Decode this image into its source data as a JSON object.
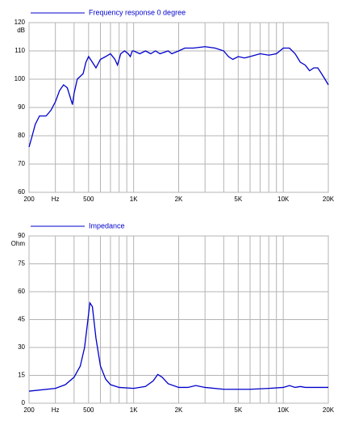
{
  "chart_data": [
    {
      "type": "line",
      "log_x": true,
      "grid": true,
      "x": [
        200,
        210,
        220,
        235,
        260,
        280,
        300,
        320,
        340,
        360,
        380,
        390,
        400,
        420,
        440,
        460,
        480,
        500,
        530,
        560,
        600,
        650,
        700,
        750,
        780,
        820,
        870,
        920,
        950,
        980,
        1000,
        1100,
        1200,
        1300,
        1400,
        1500,
        1700,
        1800,
        2000,
        2200,
        2500,
        3000,
        3500,
        4000,
        4300,
        4600,
        5000,
        5500,
        6000,
        7000,
        8000,
        9000,
        10000,
        11000,
        12000,
        13000,
        14000,
        15000,
        16000,
        17000,
        18000,
        19000,
        20000
      ],
      "series": [
        {
          "name": "Frequency response 0 degree",
          "color": "#0000cc",
          "values": [
            76,
            80,
            84,
            87,
            87,
            89,
            92,
            96,
            98,
            97,
            93,
            91,
            95,
            100,
            101,
            102,
            106,
            108,
            106,
            104,
            107,
            108,
            109,
            107,
            105,
            109,
            110,
            109,
            108,
            110,
            110,
            109,
            110,
            109,
            110,
            109,
            110,
            109,
            110,
            111,
            111,
            111.5,
            111,
            110,
            108,
            107,
            108,
            107.5,
            108,
            109,
            108.5,
            109,
            111,
            111,
            109,
            106,
            105,
            103,
            104,
            104,
            102,
            100,
            98
          ]
        }
      ],
      "xlim": [
        200,
        20000
      ],
      "xticks": [
        200,
        {
          "value": 300,
          "label": "Hz"
        },
        500,
        {
          "value": 1000,
          "label": "1K"
        },
        {
          "value": 2000,
          "label": "2K"
        },
        {
          "value": 5000,
          "label": "5K"
        },
        {
          "value": 10000,
          "label": "10K"
        },
        {
          "value": 20000,
          "label": "20K"
        }
      ],
      "xgrid": [
        400,
        600,
        700,
        800,
        900,
        3000,
        4000,
        6000,
        7000,
        8000,
        9000
      ],
      "ylim": [
        60,
        120
      ],
      "yticks": [
        60,
        70,
        80,
        90,
        100,
        110,
        120
      ],
      "y_unit": "dB"
    },
    {
      "type": "line",
      "log_x": true,
      "grid": true,
      "x": [
        200,
        300,
        350,
        400,
        440,
        470,
        490,
        510,
        530,
        560,
        600,
        650,
        700,
        800,
        1000,
        1200,
        1350,
        1450,
        1550,
        1700,
        2000,
        2300,
        2600,
        3000,
        4000,
        6000,
        8000,
        10000,
        11000,
        12000,
        13000,
        14000,
        16000,
        20000
      ],
      "series": [
        {
          "name": "Impedance",
          "color": "#0000cc",
          "values": [
            6.5,
            8,
            10,
            14,
            20,
            30,
            42,
            54,
            52,
            35,
            20,
            13,
            10,
            8.5,
            8,
            9,
            12,
            15.5,
            14,
            10.5,
            8.5,
            8.5,
            9.5,
            8.5,
            7.5,
            7.5,
            8,
            8.5,
            9.5,
            8.5,
            9,
            8.5,
            8.5,
            8.5
          ]
        }
      ],
      "xlim": [
        200,
        20000
      ],
      "xticks": [
        200,
        {
          "value": 300,
          "label": "Hz"
        },
        500,
        {
          "value": 1000,
          "label": "1K"
        },
        {
          "value": 2000,
          "label": "2K"
        },
        {
          "value": 5000,
          "label": "5K"
        },
        {
          "value": 10000,
          "label": "10K"
        },
        {
          "value": 20000,
          "label": "20K"
        }
      ],
      "xgrid": [
        400,
        600,
        700,
        800,
        900,
        3000,
        4000,
        6000,
        7000,
        8000,
        9000
      ],
      "ylim": [
        0,
        90
      ],
      "yticks": [
        0,
        15,
        30,
        45,
        60,
        75,
        90
      ],
      "y_unit": "Ohm"
    }
  ]
}
